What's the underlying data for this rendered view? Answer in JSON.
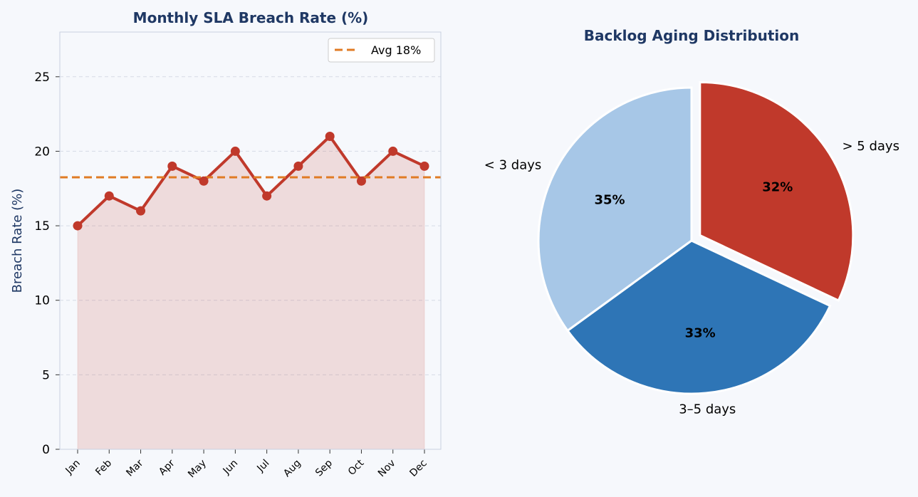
{
  "colors": {
    "title": "#1f3864",
    "line": "#c0392b",
    "fill": "#c0392b",
    "avg": "#e07b24",
    "grid": "#d6dbe5",
    "frame": "#c8d0e0",
    "pie": [
      "#a7c7e7",
      "#2e75b6",
      "#c0392b"
    ]
  },
  "chart_data": [
    {
      "type": "area",
      "title": "Monthly SLA Breach Rate (%)",
      "xlabel": "",
      "ylabel": "Breach Rate (%)",
      "categories": [
        "Jan",
        "Feb",
        "Mar",
        "Apr",
        "May",
        "Jun",
        "Jul",
        "Aug",
        "Sep",
        "Oct",
        "Nov",
        "Dec"
      ],
      "series": [
        {
          "name": "",
          "values": [
            15,
            17,
            16,
            19,
            18,
            20,
            17,
            19,
            21,
            18,
            20,
            19
          ]
        }
      ],
      "reference_line": {
        "label": "Avg 18%",
        "value": 18.25,
        "style": "dashed"
      },
      "ylim": [
        0,
        28
      ],
      "yticks": [
        0,
        5,
        10,
        15,
        20,
        25
      ],
      "grid": true,
      "legend": "top-right"
    },
    {
      "type": "pie",
      "title": "Backlog Aging Distribution",
      "labels": [
        "< 3 days",
        "3–5 days",
        "> 5 days"
      ],
      "values": [
        35,
        33,
        32
      ],
      "percent_labels": [
        "35%",
        "33%",
        "32%"
      ],
      "exploded": "> 5 days",
      "start": "top",
      "direction": "counterclockwise"
    }
  ]
}
